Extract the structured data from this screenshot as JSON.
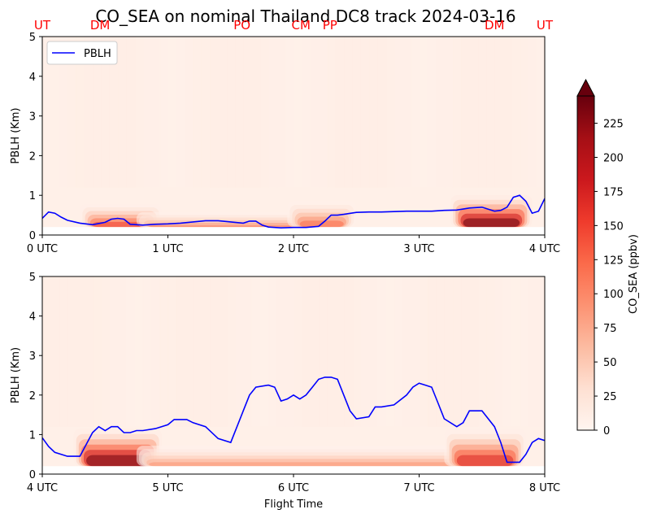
{
  "chart_data": {
    "title": "CO_SEA on nominal Thailand DC8 track 2024-03-16",
    "type": "heatmap",
    "colorbar": {
      "label": "CO_SEA (ppbv)",
      "ticks": [
        "0",
        "25",
        "50",
        "75",
        "100",
        "125",
        "150",
        "175",
        "200",
        "225"
      ],
      "range": [
        0,
        245
      ],
      "colormap": "Reds",
      "extend": "max"
    },
    "xlabel": "Flight Time",
    "panels": [
      {
        "ylabel": "PBLH (Km)",
        "ylim": [
          0,
          5
        ],
        "yticks": [
          "0",
          "1",
          "2",
          "3",
          "4",
          "5"
        ],
        "xlim": [
          0,
          4
        ],
        "xticks": [
          "0 UTC",
          "1 UTC",
          "2 UTC",
          "3 UTC",
          "4 UTC"
        ],
        "legend": {
          "label": "PBLH",
          "color": "#0000ff",
          "placement": "upper-left"
        },
        "site_labels": [
          {
            "label": "UT",
            "x": 0.0
          },
          {
            "label": "DM",
            "x": 0.46
          },
          {
            "label": "PO",
            "x": 1.59
          },
          {
            "label": "CM",
            "x": 2.06
          },
          {
            "label": "PP",
            "x": 2.29
          },
          {
            "label": "DM",
            "x": 3.6
          },
          {
            "label": "UT",
            "x": 4.0
          }
        ],
        "pblh": {
          "x": [
            0,
            0.05,
            0.1,
            0.15,
            0.2,
            0.3,
            0.4,
            0.5,
            0.55,
            0.6,
            0.65,
            0.7,
            0.75,
            0.8,
            0.9,
            1.0,
            1.1,
            1.2,
            1.3,
            1.4,
            1.5,
            1.6,
            1.65,
            1.7,
            1.75,
            1.8,
            1.85,
            1.9,
            2.0,
            2.1,
            2.2,
            2.25,
            2.3,
            2.35,
            2.4,
            2.5,
            2.6,
            2.7,
            2.8,
            2.9,
            3.0,
            3.1,
            3.2,
            3.3,
            3.4,
            3.5,
            3.55,
            3.6,
            3.65,
            3.7,
            3.75,
            3.8,
            3.85,
            3.9,
            3.95,
            4.0
          ],
          "y": [
            0.42,
            0.58,
            0.55,
            0.45,
            0.37,
            0.3,
            0.26,
            0.32,
            0.4,
            0.42,
            0.4,
            0.27,
            0.26,
            0.25,
            0.27,
            0.28,
            0.3,
            0.33,
            0.36,
            0.36,
            0.33,
            0.3,
            0.35,
            0.35,
            0.25,
            0.2,
            0.19,
            0.18,
            0.19,
            0.19,
            0.22,
            0.35,
            0.5,
            0.5,
            0.52,
            0.57,
            0.58,
            0.58,
            0.59,
            0.6,
            0.6,
            0.6,
            0.62,
            0.63,
            0.68,
            0.7,
            0.65,
            0.6,
            0.62,
            0.7,
            0.95,
            1.0,
            0.85,
            0.55,
            0.6,
            0.92
          ]
        },
        "concentration_hotspots": [
          {
            "x": [
              0.4,
              0.85
            ],
            "z_top": 0.55,
            "peak": 150
          },
          {
            "x": [
              0.85,
              2.3
            ],
            "z_top": 0.4,
            "peak": 110
          },
          {
            "x": [
              2.05,
              2.4
            ],
            "z_top": 0.6,
            "peak": 120
          },
          {
            "x": [
              3.35,
              3.8
            ],
            "z_top": 0.7,
            "peak": 245
          }
        ]
      },
      {
        "ylabel": "PBLH (Km)",
        "ylim": [
          0,
          5
        ],
        "yticks": [
          "0",
          "1",
          "2",
          "3",
          "4",
          "5"
        ],
        "xlim": [
          4,
          8
        ],
        "xticks": [
          "4 UTC",
          "5 UTC",
          "6 UTC",
          "7 UTC",
          "8 UTC"
        ],
        "pblh": {
          "x": [
            4.0,
            4.05,
            4.1,
            4.2,
            4.3,
            4.4,
            4.45,
            4.5,
            4.55,
            4.6,
            4.65,
            4.7,
            4.75,
            4.8,
            4.9,
            5.0,
            5.05,
            5.1,
            5.15,
            5.2,
            5.3,
            5.4,
            5.5,
            5.55,
            5.6,
            5.65,
            5.7,
            5.8,
            5.85,
            5.9,
            5.95,
            6.0,
            6.05,
            6.1,
            6.15,
            6.2,
            6.25,
            6.3,
            6.35,
            6.4,
            6.45,
            6.5,
            6.6,
            6.65,
            6.7,
            6.8,
            6.9,
            6.95,
            7.0,
            7.05,
            7.1,
            7.15,
            7.2,
            7.3,
            7.35,
            7.4,
            7.5,
            7.6,
            7.65,
            7.7,
            7.8,
            7.85,
            7.9,
            7.95,
            8.0
          ],
          "y": [
            0.92,
            0.7,
            0.55,
            0.45,
            0.45,
            1.05,
            1.2,
            1.1,
            1.2,
            1.2,
            1.05,
            1.05,
            1.1,
            1.1,
            1.15,
            1.25,
            1.38,
            1.38,
            1.38,
            1.3,
            1.2,
            0.9,
            0.8,
            1.2,
            1.6,
            2.0,
            2.2,
            2.25,
            2.2,
            1.85,
            1.9,
            2.0,
            1.9,
            2.0,
            2.2,
            2.4,
            2.45,
            2.45,
            2.4,
            2.0,
            1.6,
            1.4,
            1.45,
            1.7,
            1.7,
            1.75,
            2.0,
            2.2,
            2.3,
            2.25,
            2.2,
            1.8,
            1.4,
            1.2,
            1.3,
            1.6,
            1.6,
            1.2,
            0.8,
            0.3,
            0.3,
            0.5,
            0.8,
            0.9,
            0.85
          ]
        },
        "concentration_hotspots": [
          {
            "x": [
              4.35,
              4.85
            ],
            "z_top": 0.8,
            "peak": 240
          },
          {
            "x": [
              4.85,
              7.3
            ],
            "z_top": 0.5,
            "peak": 90
          },
          {
            "x": [
              7.3,
              7.75
            ],
            "z_top": 0.8,
            "peak": 170
          }
        ]
      }
    ]
  }
}
